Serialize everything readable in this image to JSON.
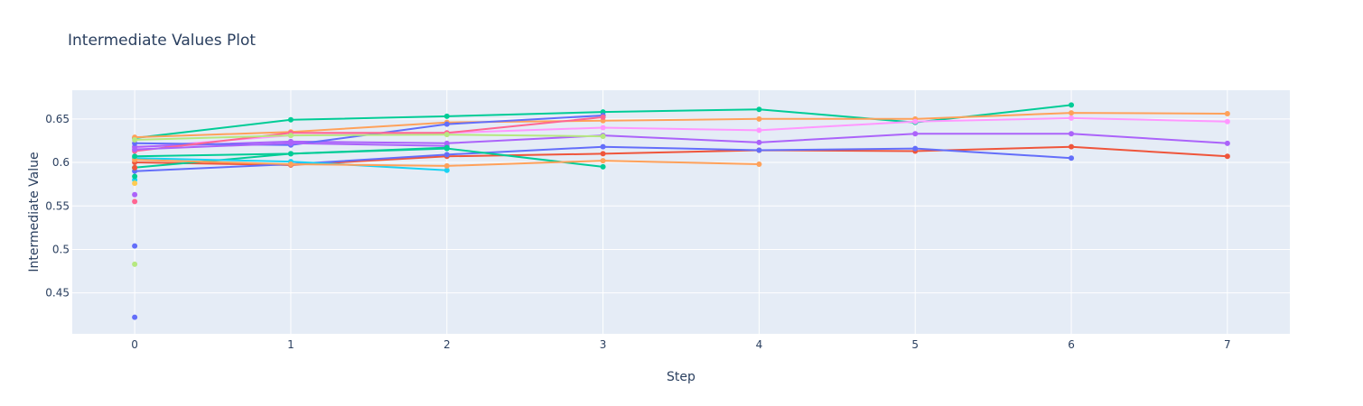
{
  "chart_data": {
    "type": "line",
    "title": "Intermediate Values Plot",
    "xlabel": "Step",
    "ylabel": "Intermediate Value",
    "xlim": [
      -0.4,
      7.4
    ],
    "ylim": [
      0.403,
      0.683
    ],
    "x_ticks": [
      0,
      1,
      2,
      3,
      4,
      5,
      6,
      7
    ],
    "x_tick_labels": [
      "0",
      "1",
      "2",
      "3",
      "4",
      "5",
      "6",
      "7"
    ],
    "y_ticks": [
      0.45,
      0.5,
      0.55,
      0.6,
      0.65
    ],
    "y_tick_labels": [
      "0.45",
      "0.5",
      "0.55",
      "0.6",
      "0.65"
    ],
    "grid": true,
    "legend": "none",
    "colors": {
      "background": "#e5ecf6",
      "grid": "#ffffff",
      "text": "#2a3f5f"
    },
    "series": [
      {
        "color": "#00cc96",
        "x": [
          0,
          1,
          2,
          3,
          4,
          5,
          6
        ],
        "y": [
          0.628,
          0.649,
          0.653,
          0.658,
          0.661,
          0.646,
          0.666
        ]
      },
      {
        "color": "#ffa15a",
        "x": [
          0,
          1,
          2,
          3,
          4,
          5,
          6,
          7
        ],
        "y": [
          0.629,
          0.635,
          0.646,
          0.648,
          0.65,
          0.65,
          0.657,
          0.656
        ]
      },
      {
        "color": "#ff97ff",
        "x": [
          0,
          1,
          2,
          3,
          4,
          5,
          6,
          7
        ],
        "y": [
          0.617,
          0.631,
          0.634,
          0.64,
          0.637,
          0.647,
          0.651,
          0.647
        ]
      },
      {
        "color": "#ab63fa",
        "x": [
          0,
          1,
          2,
          3,
          4,
          5,
          6,
          7
        ],
        "y": [
          0.618,
          0.624,
          0.622,
          0.631,
          0.623,
          0.633,
          0.633,
          0.622
        ]
      },
      {
        "color": "#ef553b",
        "x": [
          0,
          1,
          2,
          3,
          4,
          5,
          6,
          7
        ],
        "y": [
          0.6,
          0.597,
          0.607,
          0.61,
          0.614,
          0.613,
          0.618,
          0.607
        ]
      },
      {
        "color": "#636efa",
        "x": [
          0,
          1,
          2,
          3,
          4,
          5,
          6
        ],
        "y": [
          0.59,
          0.598,
          0.609,
          0.618,
          0.614,
          0.616,
          0.605
        ]
      },
      {
        "color": "#636efa",
        "x": [
          0,
          1,
          2,
          3
        ],
        "y": [
          0.622,
          0.62,
          0.644,
          0.654
        ]
      },
      {
        "color": "#ff6692",
        "x": [
          0,
          1,
          2,
          3
        ],
        "y": [
          0.613,
          0.634,
          0.634,
          0.652
        ]
      },
      {
        "color": "#00cc96",
        "x": [
          0,
          1,
          2,
          3
        ],
        "y": [
          0.594,
          0.61,
          0.616,
          0.595
        ]
      },
      {
        "color": "#19d3f3",
        "x": [
          0,
          1,
          2
        ],
        "y": [
          0.605,
          0.601,
          0.591
        ]
      },
      {
        "color": "#ffa15a",
        "x": [
          0,
          1,
          2,
          3,
          4
        ],
        "y": [
          0.603,
          0.598,
          0.596,
          0.602,
          0.598
        ]
      },
      {
        "color": "#b6e880",
        "x": [
          0,
          1,
          2,
          3
        ],
        "y": [
          0.626,
          0.631,
          0.632,
          0.63
        ]
      },
      {
        "color": "#ab63fa",
        "x": [
          0,
          1,
          2
        ],
        "y": [
          0.615,
          0.622,
          0.619
        ]
      },
      {
        "color": "#00cc96",
        "x": [
          0,
          1,
          2
        ],
        "y": [
          0.607,
          0.61,
          0.617
        ]
      },
      {
        "color": "#ef553b",
        "x": [
          0
        ],
        "y": [
          0.594
        ]
      },
      {
        "color": "#19d3f3",
        "x": [
          0
        ],
        "y": [
          0.58
        ]
      },
      {
        "color": "#fecb52",
        "x": [
          0
        ],
        "y": [
          0.576
        ]
      },
      {
        "color": "#ab63fa",
        "x": [
          0
        ],
        "y": [
          0.563
        ]
      },
      {
        "color": "#ff6692",
        "x": [
          0
        ],
        "y": [
          0.555
        ]
      },
      {
        "color": "#636efa",
        "x": [
          0
        ],
        "y": [
          0.504
        ]
      },
      {
        "color": "#b6e880",
        "x": [
          0
        ],
        "y": [
          0.483
        ]
      },
      {
        "color": "#636efa",
        "x": [
          0
        ],
        "y": [
          0.422
        ]
      },
      {
        "color": "#00cc96",
        "x": [
          0
        ],
        "y": [
          0.584
        ]
      }
    ]
  }
}
